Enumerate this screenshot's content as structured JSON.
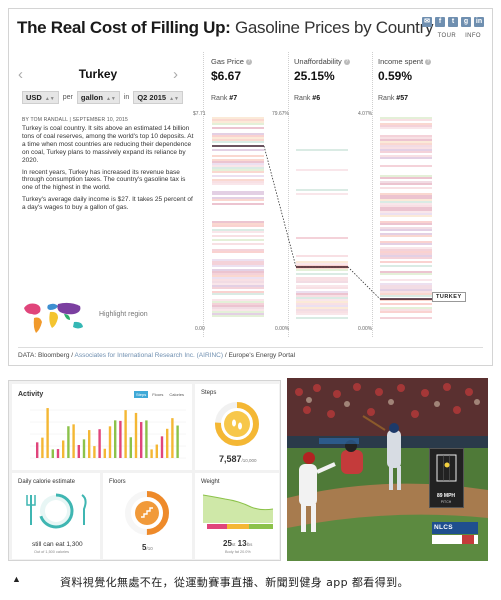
{
  "infographic": {
    "title_bold": "The Real Cost of Filling Up:",
    "title_rest": "Gasoline Prices by Country",
    "top_links": [
      "TOUR",
      "INFO"
    ],
    "share_icons": [
      "email-icon",
      "facebook-icon",
      "twitter-icon",
      "google-plus-icon",
      "linkedin-icon"
    ],
    "country": "Turkey",
    "currency": "USD",
    "per_label": "per",
    "unit": "gallon",
    "in_label": "in",
    "period": "Q2 2015",
    "byline": "BY TOM RANDALL | SEPTEMBER 10, 2015",
    "paragraphs": [
      "Turkey is coal country. It sits above an estimated 14 billion tons of coal reserves, among the world's top 10 deposits. At a time when most countries are reducing their dependence on coal, Turkey plans to massively expand its reliance by 2020.",
      "In recent years, Turkey has increased its revenue base through consumption taxes. The country's gasoline tax is one of the highest in the world.",
      "Turkey's average daily income is $27. It takes 25 percent of a day's wages to buy a gallon of gas."
    ],
    "highlight_region": "Highlight region",
    "metrics": [
      {
        "label": "Gas Price",
        "value": "$6.67",
        "rank_label": "Rank",
        "rank": "#7",
        "axis_top": "$7.71",
        "axis_bottom": "0.00"
      },
      {
        "label": "Unaffordability",
        "value": "25.15%",
        "rank_label": "Rank",
        "rank": "#6",
        "axis_top": "79.67%",
        "axis_bottom": "0.00%"
      },
      {
        "label": "Income spent",
        "value": "0.59%",
        "rank_label": "Rank",
        "rank": "#57",
        "axis_top": "4.07%",
        "axis_bottom": "0.00%"
      }
    ],
    "country_tag": "TURKEY",
    "source_prefix": "DATA:",
    "source_a": "Bloomberg",
    "source_b": "Associates for International Research Inc. (AIRINC)",
    "source_c": "Europe's Energy Portal",
    "source_sep": "/"
  },
  "fitness": {
    "activity_title": "Activity",
    "activity_tabs": [
      "Steps",
      "Floors",
      "Calories"
    ],
    "steps_title": "Steps",
    "steps_value": "7,587",
    "steps_goal": "/10,000",
    "steps_progress": 0.76,
    "calories_title": "Daily calorie estimate",
    "calories_value": "still can eat 1,300",
    "calories_sub": "Out of 1,500 calories",
    "floors_title": "Floors",
    "floors_value": "5",
    "floors_goal": "/10",
    "floors_progress": 0.5,
    "weight_title": "Weight",
    "weight_value": "25",
    "weight_unit1": "st",
    "weight_value2": "13",
    "weight_unit2": "lbs",
    "weight_sub": "Body fat 20.0%"
  },
  "baseball": {
    "pitch_speed": "89 MPH",
    "pitch_label": "PITCH",
    "series_label": "NLCS"
  },
  "caption": {
    "marker": "▲",
    "text": "資料視覺化無處不在，從運動賽事直播、新聞到健身 app 都看得到。"
  }
}
